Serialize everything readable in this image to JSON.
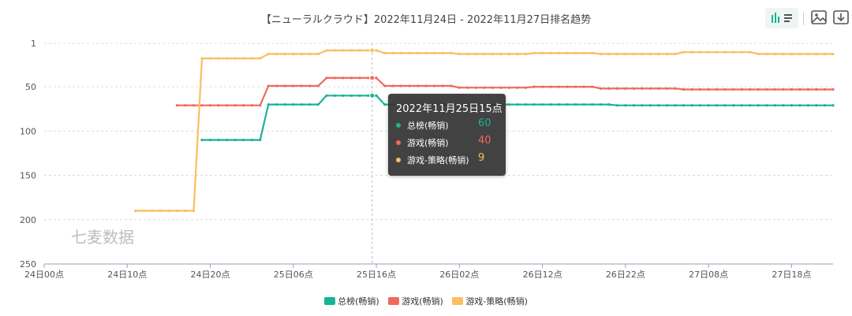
{
  "chart_data": {
    "type": "line",
    "title": "【ニューラルクラウド】2022年11月24日 - 2022年11月27日排名趋势",
    "x_tick_labels": [
      "24日00点",
      "24日10点",
      "24日20点",
      "25日06点",
      "25日16点",
      "26日02点",
      "26日12点",
      "26日22点",
      "27日08点",
      "27日18点"
    ],
    "y_tick_labels": [
      "1",
      "50",
      "100",
      "150",
      "200",
      "250"
    ],
    "yaxis_inverted": true,
    "ylim": [
      1,
      250
    ],
    "xlim_hours": [
      0,
      95
    ],
    "grid": "horizontal dashed",
    "legend_position": "bottom",
    "series": [
      {
        "name": "总榜(畅销)",
        "color": "#1ab394",
        "points": [
          [
            19,
            110
          ],
          [
            26,
            110
          ],
          [
            27,
            70
          ],
          [
            33,
            70
          ],
          [
            34,
            60
          ],
          [
            40,
            60
          ],
          [
            41,
            70
          ],
          [
            68,
            70
          ],
          [
            69,
            71
          ],
          [
            95,
            71
          ]
        ]
      },
      {
        "name": "游戏(畅销)",
        "color": "#f0695d",
        "points": [
          [
            16,
            71
          ],
          [
            26,
            71
          ],
          [
            27,
            49
          ],
          [
            33,
            49
          ],
          [
            34,
            40
          ],
          [
            40,
            40
          ],
          [
            41,
            49
          ],
          [
            49,
            49
          ],
          [
            50,
            51
          ],
          [
            58,
            51
          ],
          [
            59,
            50
          ],
          [
            66,
            50
          ],
          [
            67,
            52
          ],
          [
            76,
            52
          ],
          [
            77,
            53
          ],
          [
            95,
            53
          ]
        ]
      },
      {
        "name": "游戏-策略(畅销)",
        "color": "#fbbe61",
        "points": [
          [
            11,
            190
          ],
          [
            18,
            190
          ],
          [
            19,
            18
          ],
          [
            26,
            18
          ],
          [
            27,
            13
          ],
          [
            33,
            13
          ],
          [
            34,
            9
          ],
          [
            40,
            9
          ],
          [
            41,
            12
          ],
          [
            49,
            12
          ],
          [
            50,
            13
          ],
          [
            58,
            13
          ],
          [
            59,
            12
          ],
          [
            66,
            12
          ],
          [
            67,
            13
          ],
          [
            76,
            13
          ],
          [
            77,
            11
          ],
          [
            85,
            11
          ],
          [
            86,
            13
          ],
          [
            95,
            13
          ]
        ]
      }
    ]
  },
  "tooltip": {
    "title": "2022年11月25日15点",
    "rows": [
      {
        "name": "总榜(畅销)",
        "value": "60",
        "color": "#1ab394"
      },
      {
        "name": "游戏(畅销)",
        "value": "40",
        "color": "#f0695d"
      },
      {
        "name": "游戏-策略(畅销)",
        "value": "9",
        "color": "#fbbe61"
      }
    ]
  },
  "watermark": "七麦数据",
  "toolbar": {
    "chart_toggle_icon": "bar-line-toggle-icon",
    "image_icon": "image-icon",
    "download_icon": "download-icon"
  }
}
